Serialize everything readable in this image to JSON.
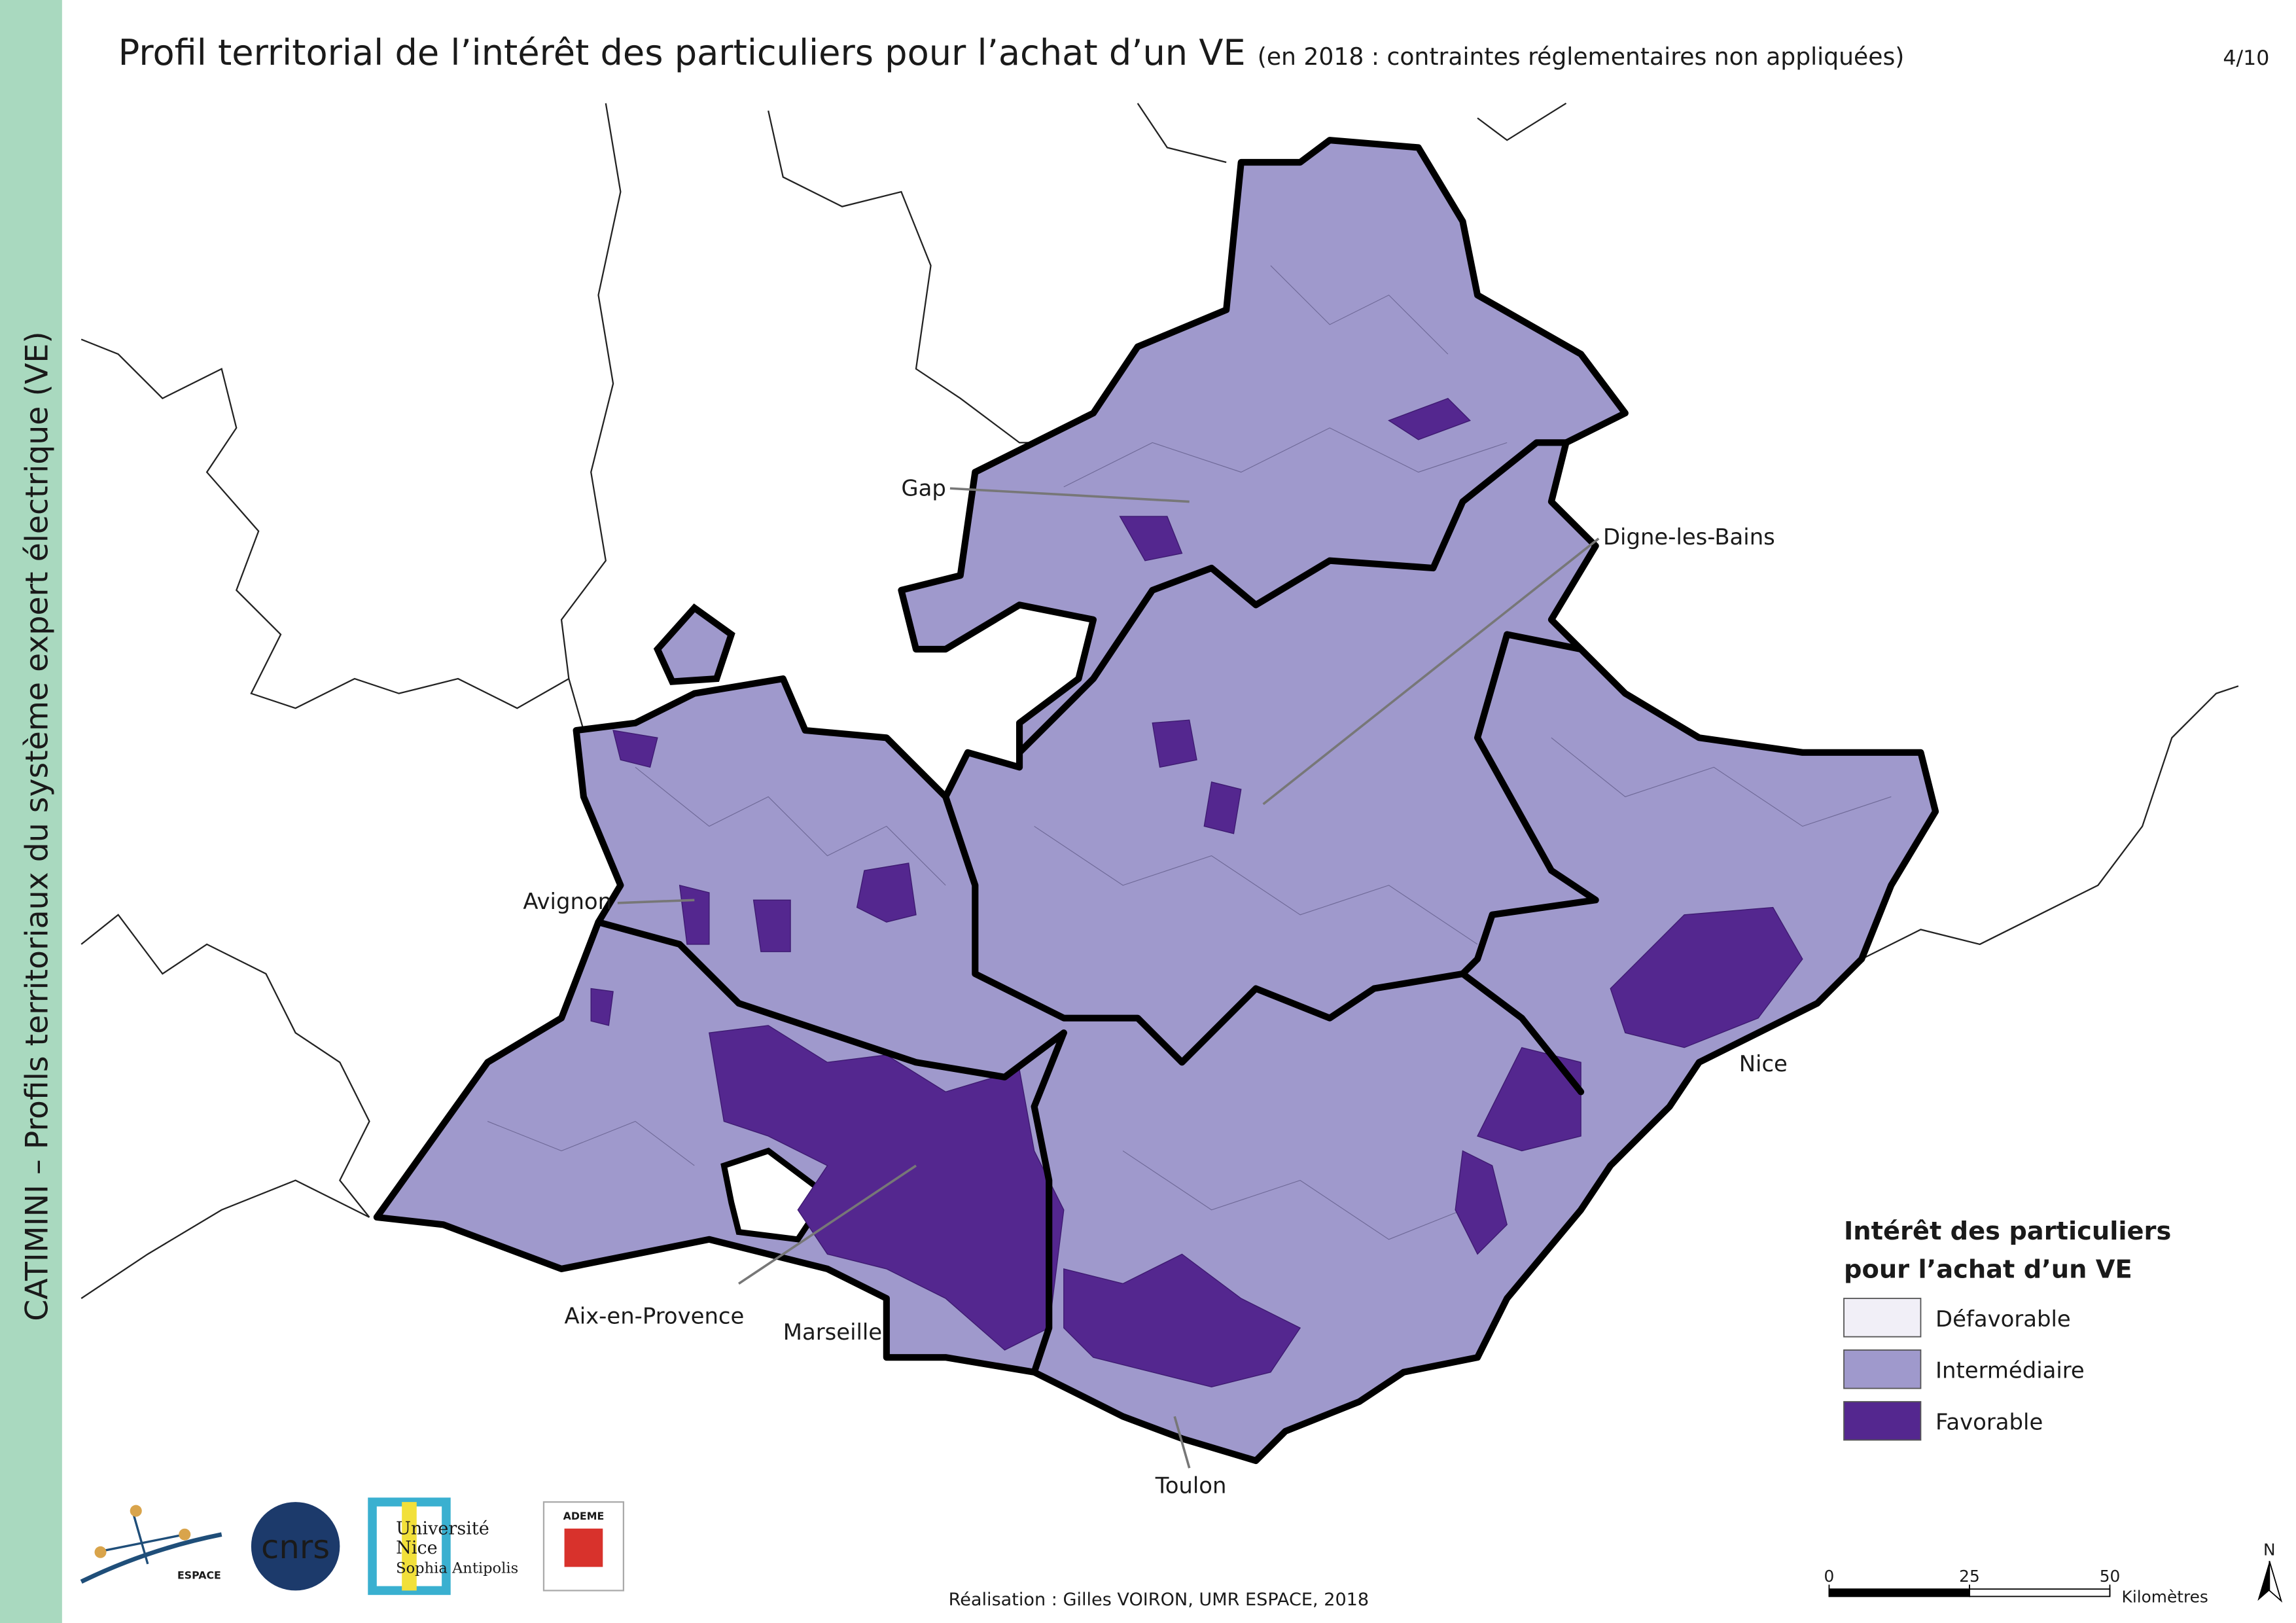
{
  "header": {
    "title": "Profil territorial de l’intérêt des particuliers pour l’achat d’un VE",
    "subtitle": "(en 2018 : contraintes réglementaires non appliquées)",
    "page": "4/10"
  },
  "sidebar": "CATIMINI – Profils territoriaux du système expert électrique (VE)",
  "cities": [
    "Gap",
    "Digne-les-Bains",
    "Avignon",
    "Nice",
    "Aix-en-Provence",
    "Marseille",
    "Toulon"
  ],
  "legend": {
    "title": [
      "Intérêt des particuliers",
      "pour l’achat d’un VE"
    ],
    "items": [
      {
        "label": "Défavorable",
        "color": "#f1eff7"
      },
      {
        "label": "Intermédiaire",
        "color": "#9f99cc"
      },
      {
        "label": "Favorable",
        "color": "#54278f"
      }
    ]
  },
  "scale": {
    "ticks": [
      0,
      25,
      50
    ],
    "unit": "Kilomètres"
  },
  "north": "N",
  "credit": "Réalisation : Gilles VOIRON, UMR ESPACE, 2018",
  "logos": {
    "espace": "ESPACE",
    "cnrs": "cnrs",
    "university": [
      "Université",
      "Nice",
      "Sophia Antipolis"
    ],
    "ademe": "ADEME"
  }
}
